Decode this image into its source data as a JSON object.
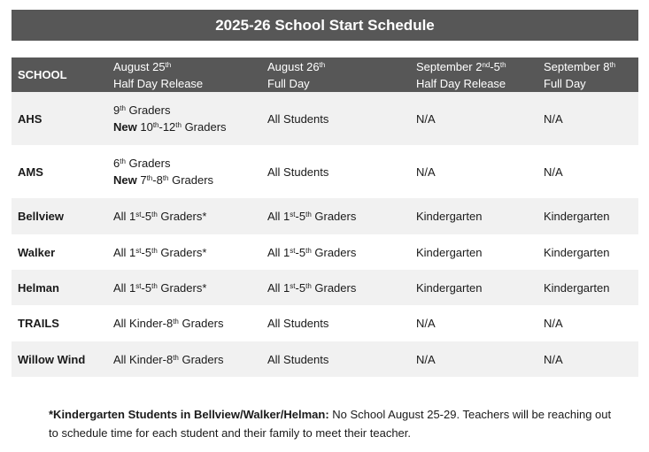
{
  "title": "2025-26 School Start Schedule",
  "header": [
    [
      [
        [
          "SCHOOL",
          ""
        ]
      ]
    ],
    [
      [
        [
          "August 25",
          ""
        ],
        [
          "th",
          "sup"
        ]
      ],
      [
        [
          "Half Day Release",
          ""
        ]
      ]
    ],
    [
      [
        [
          "August 26",
          ""
        ],
        [
          "th",
          "sup"
        ]
      ],
      [
        [
          "Full Day",
          ""
        ]
      ]
    ],
    [
      [
        [
          "September 2",
          ""
        ],
        [
          "nd",
          "sup"
        ],
        [
          "-5",
          ""
        ],
        [
          "th",
          "sup"
        ]
      ],
      [
        [
          "Half Day Release",
          ""
        ]
      ]
    ],
    [
      [
        [
          "September 8",
          ""
        ],
        [
          "th",
          "sup"
        ]
      ],
      [
        [
          "Full Day",
          ""
        ]
      ]
    ]
  ],
  "rows": [
    {
      "h": 60,
      "gray": true,
      "cells": [
        [
          [
            [
              "AHS",
              ""
            ]
          ]
        ],
        [
          [
            [
              "9",
              ""
            ],
            [
              "th",
              "sup"
            ],
            [
              " Graders",
              ""
            ]
          ],
          [
            [
              "New",
              "b"
            ],
            [
              " 10",
              ""
            ],
            [
              "th",
              "sup"
            ],
            [
              "-12",
              ""
            ],
            [
              "th",
              "sup"
            ],
            [
              " Graders",
              ""
            ]
          ]
        ],
        [
          [
            [
              "All Students",
              ""
            ]
          ]
        ],
        [
          [
            [
              "N/A",
              ""
            ]
          ]
        ],
        [
          [
            [
              "N/A",
              ""
            ]
          ]
        ]
      ]
    },
    {
      "h": 60,
      "gray": false,
      "cells": [
        [
          [
            [
              "AMS",
              ""
            ]
          ]
        ],
        [
          [
            [
              "6",
              ""
            ],
            [
              "th",
              "sup"
            ],
            [
              " Graders",
              ""
            ]
          ],
          [
            [
              "New",
              "b"
            ],
            [
              " 7",
              ""
            ],
            [
              "th",
              "sup"
            ],
            [
              "-8",
              ""
            ],
            [
              "th",
              "sup"
            ],
            [
              " Graders",
              ""
            ]
          ]
        ],
        [
          [
            [
              "All Students",
              ""
            ]
          ]
        ],
        [
          [
            [
              "N/A",
              ""
            ]
          ]
        ],
        [
          [
            [
              "N/A",
              ""
            ]
          ]
        ]
      ]
    },
    {
      "h": 41,
      "gray": true,
      "cells": [
        [
          [
            [
              "Bellview",
              ""
            ]
          ]
        ],
        [
          [
            [
              "All 1",
              ""
            ],
            [
              "st",
              "sup"
            ],
            [
              "-5",
              ""
            ],
            [
              "th",
              "sup"
            ],
            [
              " Graders*",
              ""
            ]
          ]
        ],
        [
          [
            [
              "All 1",
              ""
            ],
            [
              "st",
              "sup"
            ],
            [
              "-5",
              ""
            ],
            [
              "th",
              "sup"
            ],
            [
              " Graders",
              ""
            ]
          ]
        ],
        [
          [
            [
              "Kindergarten",
              ""
            ]
          ]
        ],
        [
          [
            [
              "Kindergarten",
              ""
            ]
          ]
        ]
      ]
    },
    {
      "h": 40,
      "gray": false,
      "cells": [
        [
          [
            [
              "Walker",
              ""
            ]
          ]
        ],
        [
          [
            [
              "All 1",
              ""
            ],
            [
              "st",
              "sup"
            ],
            [
              "-5",
              ""
            ],
            [
              "th",
              "sup"
            ],
            [
              " Graders*",
              ""
            ]
          ]
        ],
        [
          [
            [
              "All 1",
              ""
            ],
            [
              "st",
              "sup"
            ],
            [
              "-5",
              ""
            ],
            [
              "th",
              "sup"
            ],
            [
              " Graders",
              ""
            ]
          ]
        ],
        [
          [
            [
              "Kindergarten",
              ""
            ]
          ]
        ],
        [
          [
            [
              "Kindergarten",
              ""
            ]
          ]
        ]
      ]
    },
    {
      "h": 40,
      "gray": true,
      "cells": [
        [
          [
            [
              "Helman",
              ""
            ]
          ]
        ],
        [
          [
            [
              "All 1",
              ""
            ],
            [
              "st",
              "sup"
            ],
            [
              "-5",
              ""
            ],
            [
              "th",
              "sup"
            ],
            [
              " Graders*",
              ""
            ]
          ]
        ],
        [
          [
            [
              "All 1",
              ""
            ],
            [
              "st",
              "sup"
            ],
            [
              "-5",
              ""
            ],
            [
              "th",
              "sup"
            ],
            [
              " Graders",
              ""
            ]
          ]
        ],
        [
          [
            [
              "Kindergarten",
              ""
            ]
          ]
        ],
        [
          [
            [
              "Kindergarten",
              ""
            ]
          ]
        ]
      ]
    },
    {
      "h": 41,
      "gray": false,
      "cells": [
        [
          [
            [
              "TRAILS",
              ""
            ]
          ]
        ],
        [
          [
            [
              "All Kinder-8",
              ""
            ],
            [
              "th",
              "sup"
            ],
            [
              " Graders",
              ""
            ]
          ]
        ],
        [
          [
            [
              "All Students",
              ""
            ]
          ]
        ],
        [
          [
            [
              "N/A",
              ""
            ]
          ]
        ],
        [
          [
            [
              "N/A",
              ""
            ]
          ]
        ]
      ]
    },
    {
      "h": 40,
      "gray": true,
      "cells": [
        [
          [
            [
              "Willow Wind",
              ""
            ]
          ]
        ],
        [
          [
            [
              "All Kinder-8",
              ""
            ],
            [
              "th",
              "sup"
            ],
            [
              " Graders",
              ""
            ]
          ]
        ],
        [
          [
            [
              "All Students",
              ""
            ]
          ]
        ],
        [
          [
            [
              "N/A",
              ""
            ]
          ]
        ],
        [
          [
            [
              "N/A",
              ""
            ]
          ]
        ]
      ]
    }
  ],
  "footnote": {
    "label": "*Kindergarten Students in Bellview/Walker/Helman:",
    "text": " No School August 25-29. Teachers will be reaching out to schedule time for each student and their family to meet their teacher."
  },
  "colors": {
    "header_bg": "#575757",
    "row_alt": "#f1f1f1"
  }
}
